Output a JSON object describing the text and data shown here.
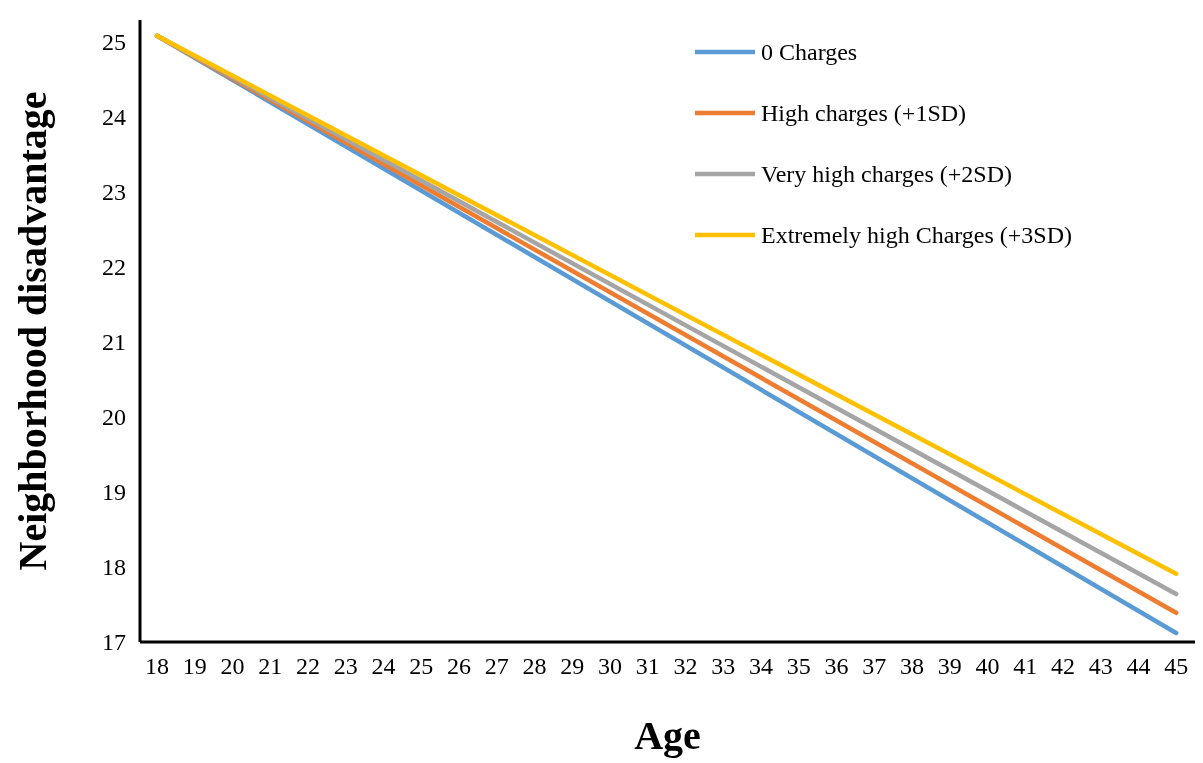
{
  "chart_data": {
    "type": "line",
    "xlabel": "Age",
    "ylabel": "Neighborhood disadvantage",
    "xlim": [
      17.55,
      45.5
    ],
    "xticks": [
      18,
      19,
      20,
      21,
      22,
      23,
      24,
      25,
      26,
      27,
      28,
      29,
      30,
      31,
      32,
      33,
      34,
      35,
      36,
      37,
      38,
      39,
      40,
      41,
      42,
      43,
      44,
      45
    ],
    "ylim": [
      17,
      25.3
    ],
    "yticks": [
      17,
      18,
      19,
      20,
      21,
      22,
      23,
      24,
      25
    ],
    "grid": false,
    "legend": "top right",
    "marker": "none",
    "line_style": "solid",
    "x": [
      18,
      45
    ],
    "series": [
      {
        "name": "0 Charges",
        "color": "#5b9bd5",
        "values": [
          25.09,
          17.12
        ]
      },
      {
        "name": "High charges (+1SD)",
        "color": "#ed7d31",
        "values": [
          25.09,
          17.39
        ]
      },
      {
        "name": "Very high charges (+2SD)",
        "color": "#a5a5a5",
        "values": [
          25.09,
          17.64
        ]
      },
      {
        "name": "Extremely high Charges (+3SD)",
        "color": "#ffc000",
        "values": [
          25.09,
          17.91
        ]
      }
    ]
  }
}
